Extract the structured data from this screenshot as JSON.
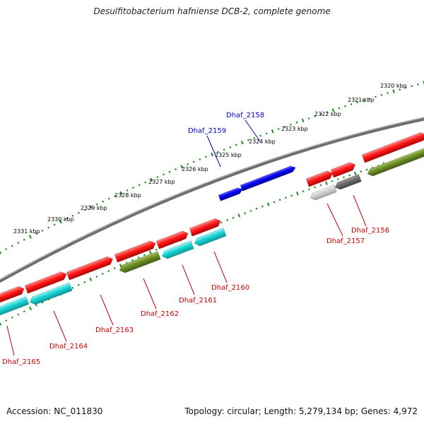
{
  "title": "Desulfitobacterium hafniense DCB-2, complete genome",
  "footer": {
    "accession": "Accession: NC_011830",
    "topology": "Topology: circular; Length: 5,279,134 bp; Genes: 4,972"
  },
  "colors": {
    "forward_gene": "#ff0000",
    "highlight_gene": "#0000ff",
    "rna": "#00cccc",
    "product_green": "#6b8e23",
    "pseudo_gray": "#888888",
    "backbone": "#7f7f7f",
    "tick": "#1a8a1a",
    "label_red": "#cc0000",
    "label_blue": "#0000cc"
  },
  "kbp_labels": [
    "2320 kbp",
    "2321 kbp",
    "2322 kbp",
    "2323 kbp",
    "2324 kbp",
    "2325 kbp",
    "2326 kbp",
    "2327 kbp",
    "2328 kbp",
    "2329 kbp",
    "2330 kbp",
    "2331 kbp"
  ],
  "genes_upper": [
    {
      "label": "Dhaf_2158",
      "color": "blue"
    },
    {
      "label": "Dhaf_2159",
      "color": "blue"
    }
  ],
  "genes_lower": [
    {
      "label": "Dhaf_2156",
      "color": "red"
    },
    {
      "label": "Dhaf_2157",
      "color": "red"
    },
    {
      "label": "Dhaf_2160",
      "color": "red"
    },
    {
      "label": "Dhaf_2161",
      "color": "red"
    },
    {
      "label": "Dhaf_2162",
      "color": "red"
    },
    {
      "label": "Dhaf_2163",
      "color": "red"
    },
    {
      "label": "Dhaf_2164",
      "color": "red"
    },
    {
      "label": "Dhaf_2165",
      "color": "red"
    }
  ]
}
